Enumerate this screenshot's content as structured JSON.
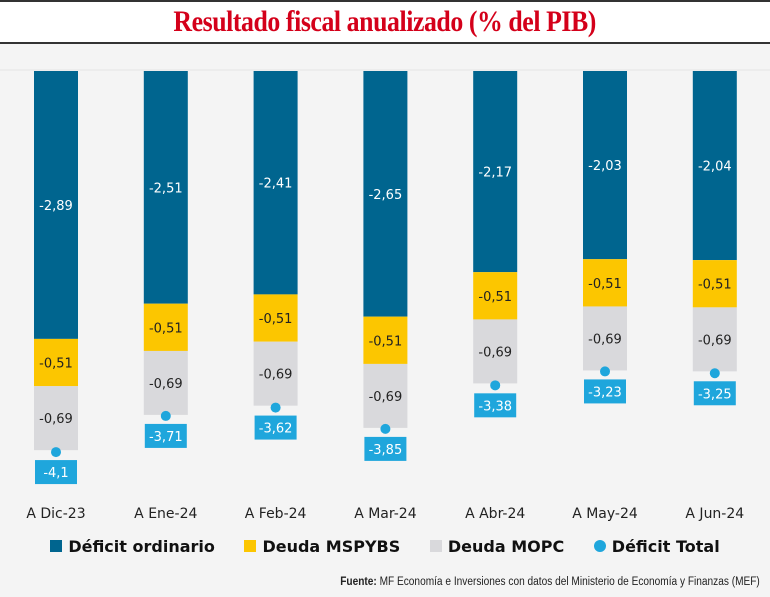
{
  "title": "Resultado fiscal anualizado (% del PIB)",
  "chart_data": {
    "type": "bar",
    "stacked": true,
    "title": "Resultado fiscal anualizado (% del PIB)",
    "xlabel": "",
    "ylabel": "",
    "categories": [
      "A Dic-23",
      "A Ene-24",
      "A Feb-24",
      "A Mar-24",
      "A Abr-24",
      "A May-24",
      "A Jun-24"
    ],
    "series": [
      {
        "name": "Déficit ordinario",
        "color": "#00658f",
        "label_color": "#ffffff",
        "values": [
          -2.89,
          -2.51,
          -2.41,
          -2.65,
          -2.17,
          -2.03,
          -2.04
        ],
        "labels": [
          "-2,89",
          "-2,51",
          "-2,41",
          "-2,65",
          "-2,17",
          "-2,03",
          "-2,04"
        ]
      },
      {
        "name": "Deuda MSPYBS",
        "color": "#fcc600",
        "label_color": "#222222",
        "values": [
          -0.51,
          -0.51,
          -0.51,
          -0.51,
          -0.51,
          -0.51,
          -0.51
        ],
        "labels": [
          "-0,51",
          "-0,51",
          "-0,51",
          "-0,51",
          "-0,51",
          "-0,51",
          "-0,51"
        ]
      },
      {
        "name": "Deuda MOPC",
        "color": "#d9d9dc",
        "label_color": "#222222",
        "values": [
          -0.69,
          -0.69,
          -0.69,
          -0.69,
          -0.69,
          -0.69,
          -0.69
        ],
        "labels": [
          "-0,69",
          "-0,69",
          "-0,69",
          "-0,69",
          "-0,69",
          "-0,69",
          "-0,69"
        ]
      }
    ],
    "total": {
      "name": "Déficit Total",
      "color": "#1fa6dc",
      "marker": "dot",
      "values": [
        -4.1,
        -3.71,
        -3.62,
        -3.85,
        -3.38,
        -3.23,
        -3.25
      ],
      "labels": [
        "-4,1",
        "-3,71",
        "-3,62",
        "-3,85",
        "-3,38",
        "-3,23",
        "-3,25"
      ]
    },
    "ylim": [
      -4.1,
      0
    ],
    "grid": false,
    "y_axis_visible": false,
    "legend_position": "bottom"
  },
  "legend": [
    {
      "label": "Déficit ordinario",
      "color": "#00658f",
      "shape": "square"
    },
    {
      "label": "Deuda MSPYBS",
      "color": "#fcc600",
      "shape": "square"
    },
    {
      "label": "Deuda MOPC",
      "color": "#d9d9dc",
      "shape": "square"
    },
    {
      "label": "Déficit Total",
      "color": "#1fa6dc",
      "shape": "dot"
    }
  ],
  "source": {
    "prefix": "Fuente:",
    "text": " MF Economía e Inversiones con datos del Ministerio de Economía y Finanzas (MEF)"
  }
}
